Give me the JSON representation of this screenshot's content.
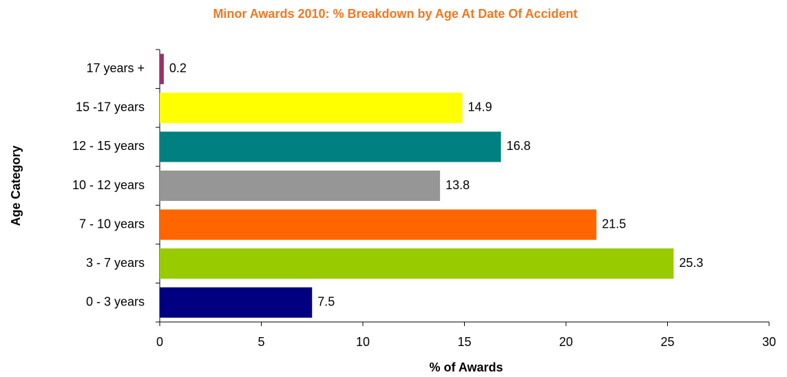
{
  "chart_data": {
    "type": "hbar",
    "title": "Minor Awards 2010: % Breakdown by Age At Date Of Accident",
    "xlabel": "% of Awards",
    "ylabel": "Age Category",
    "categories": [
      "0 - 3 years",
      "3 - 7 years",
      "7 - 10 years",
      "10 - 12 years",
      "12 - 15 years",
      "15 -17 years",
      "17 years +"
    ],
    "values": [
      7.5,
      25.3,
      21.5,
      13.8,
      16.8,
      14.9,
      0.2
    ],
    "colors": [
      "#000080",
      "#99cc00",
      "#ff6600",
      "#969696",
      "#008080",
      "#ffff00",
      "#993366"
    ],
    "xlim": [
      0,
      30
    ],
    "xticks": [
      0,
      5,
      10,
      15,
      20,
      25,
      30
    ],
    "grid": false
  }
}
